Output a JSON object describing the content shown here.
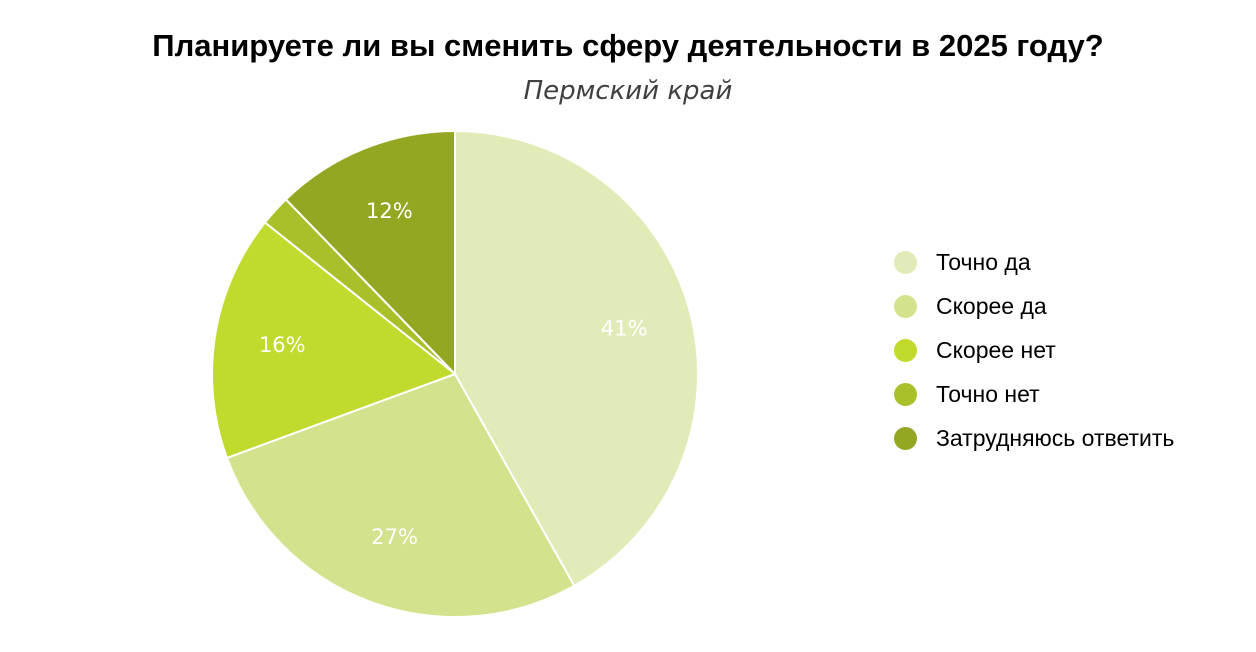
{
  "chart_data": {
    "type": "pie",
    "title": "Планируете ли вы сменить сферу деятельности в 2025 году?",
    "subtitle": "Пермский край",
    "categories": [
      "Точно да",
      "Скорее да",
      "Скорее нет",
      "Точно нет",
      "Затрудняюсь ответить"
    ],
    "values": [
      41,
      27,
      16,
      2,
      12
    ],
    "data_labels": [
      "41%",
      "27%",
      "16%",
      "",
      "12%"
    ],
    "colors": [
      "#e0ebb8",
      "#d3e28c",
      "#c2d92e",
      "#aac02b",
      "#94a622"
    ],
    "start_angle_deg": 0,
    "direction": "clockwise",
    "legend_position": "right"
  }
}
